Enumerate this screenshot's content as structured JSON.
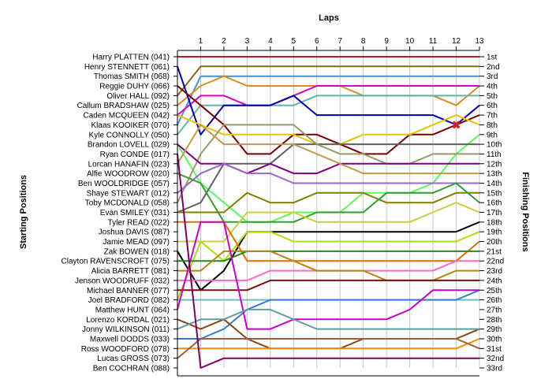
{
  "chart_data": {
    "type": "line",
    "title": "",
    "xlabel": "Laps",
    "ylabel_left": "Starting Positions",
    "ylabel_right": "Finishing Positions",
    "x": [
      0,
      1,
      2,
      3,
      4,
      5,
      6,
      7,
      8,
      9,
      10,
      11,
      12,
      13
    ],
    "x_tick_labels": [
      "1",
      "2",
      "3",
      "4",
      "5",
      "6",
      "7",
      "8",
      "9",
      "10",
      "11",
      "12",
      "13"
    ],
    "xlim": [
      0,
      13
    ],
    "ylim": [
      1,
      33
    ],
    "y_inverted": true,
    "grid": true,
    "finishing_labels": [
      "1st",
      "2nd",
      "3rd",
      "4th",
      "5th",
      "6th",
      "7th",
      "8th",
      "9th",
      "10th",
      "11th",
      "12th",
      "13th",
      "14th",
      "15th",
      "16th",
      "17th",
      "18th",
      "19th",
      "20th",
      "21st",
      "22nd",
      "23rd",
      "24th",
      "25th",
      "26th",
      "27th",
      "28th",
      "29th",
      "30th",
      "31st",
      "32nd",
      "33rd"
    ],
    "starting_labels": [
      "Harry PLATTEN (041)",
      "Henry STENNETT (061)",
      "Thomas SMITH (068)",
      "Reggie DUHY (066)",
      "Oliver HALL (092)",
      "Callum BRADSHAW (025)",
      "Caden MCQUEEN (042)",
      "Klaas KOOIKER (070)",
      "Kyle CONNOLLY (050)",
      "Brandon LOVELL (029)",
      "Ryan CONDE (017)",
      "Lorcan HANAFIN (023)",
      "Alfie WOODROW (020)",
      "Ben WOOLDRIDGE (057)",
      "Shaye STEWART (012)",
      "Toby MCDONALD (058)",
      "Evan SMILEY (031)",
      "Tyler READ (022)",
      "Joshua DAVIS (087)",
      "Jamie MEAD (097)",
      "Zak BOWEN (018)",
      "Clayton RAVENSCROFT (075)",
      "Alicia BARRETT (081)",
      "Jenson WOODRUFF (032)",
      "Michael BANNER (077)",
      "Joel BRADFORD (082)",
      "Matthew HUNT (064)",
      "Lorenzo KORDAL (021)",
      "Jonny WILKINSON (011)",
      "Maxwell DODDS (033)",
      "Ross WOODFORD (078)",
      "Lucas GROSS (073)",
      "Ben COCHRAN (088)"
    ],
    "series": [
      {
        "color": "#b22222",
        "values": [
          1,
          1,
          1,
          1,
          1,
          1,
          1,
          1,
          1,
          1,
          1,
          1,
          1,
          1
        ]
      },
      {
        "color": "#8b6914",
        "values": [
          5,
          2,
          2,
          2,
          2,
          2,
          2,
          2,
          2,
          2,
          2,
          2,
          2,
          2
        ]
      },
      {
        "color": "#4a90d9",
        "values": [
          8,
          3,
          3,
          3,
          3,
          3,
          3,
          3,
          3,
          3,
          3,
          3,
          3,
          3
        ]
      },
      {
        "color": "#e08a1e",
        "values": [
          6,
          4,
          3,
          4,
          4,
          4,
          4,
          4,
          5,
          5,
          5,
          5,
          6,
          4
        ]
      },
      {
        "color": "#d400d4",
        "values": [
          7,
          5,
          5,
          6,
          6,
          5,
          4,
          4,
          4,
          4,
          4,
          4,
          4,
          4
        ]
      },
      {
        "color": "#66b2a8",
        "values": [
          9,
          6,
          6,
          6,
          6,
          6,
          5,
          5,
          5,
          5,
          5,
          5,
          5,
          5
        ]
      },
      {
        "color": "#0000b0",
        "values": [
          2,
          9,
          6,
          6,
          6,
          5,
          7,
          7,
          7,
          7,
          7,
          7,
          8,
          6
        ]
      },
      {
        "color": "#7a0000",
        "values": [
          4,
          6,
          8,
          11,
          11,
          9,
          9,
          10,
          11,
          11,
          9,
          9,
          8,
          7
        ]
      },
      {
        "color": "#e8c300",
        "values": [
          7,
          8,
          9,
          9,
          9,
          9,
          10,
          10,
          9,
          9,
          9,
          8,
          7,
          8
        ]
      },
      {
        "color": "#55ff55",
        "values": [
          10,
          14,
          16,
          18,
          18,
          17,
          17,
          17,
          15,
          15,
          15,
          14,
          11,
          9
        ]
      },
      {
        "color": "#606060",
        "values": [
          17,
          16,
          12,
          12,
          12,
          10,
          10,
          10,
          10,
          10,
          10,
          10,
          10,
          10
        ]
      },
      {
        "color": "#999966",
        "values": [
          16,
          11,
          8,
          8,
          8,
          8,
          10,
          11,
          11,
          12,
          12,
          11,
          11,
          11
        ]
      },
      {
        "color": "#800080",
        "values": [
          10,
          12,
          12,
          13,
          12,
          13,
          13,
          12,
          12,
          12,
          12,
          12,
          12,
          12
        ]
      },
      {
        "color": "#c29a4a",
        "values": [
          12,
          8,
          10,
          10,
          10,
          10,
          11,
          12,
          13,
          13,
          13,
          13,
          13,
          13
        ]
      },
      {
        "color": "#9966cc",
        "values": [
          15,
          13,
          12,
          13,
          13,
          14,
          14,
          14,
          14,
          14,
          14,
          14,
          14,
          14
        ]
      },
      {
        "color": "#808000",
        "values": [
          17,
          17,
          17,
          15,
          16,
          16,
          15,
          15,
          15,
          16,
          16,
          16,
          15,
          15
        ]
      },
      {
        "color": "#2f9e2f",
        "values": [
          13,
          14,
          18,
          18,
          18,
          18,
          17,
          17,
          17,
          15,
          15,
          15,
          14,
          16
        ]
      },
      {
        "color": "#cccc44",
        "values": [
          20,
          20,
          20,
          17,
          17,
          17,
          18,
          18,
          18,
          18,
          18,
          17,
          16,
          17
        ]
      },
      {
        "color": "#000000",
        "values": [
          21,
          25,
          23,
          19,
          19,
          19,
          19,
          19,
          19,
          19,
          19,
          19,
          19,
          18
        ]
      },
      {
        "color": "#b0e000",
        "values": [
          26,
          20,
          22,
          19,
          19,
          20,
          20,
          20,
          20,
          20,
          20,
          20,
          20,
          19
        ]
      },
      {
        "color": "#e07000",
        "values": [
          18,
          18,
          18,
          22,
          22,
          22,
          22,
          22,
          22,
          22,
          22,
          22,
          22,
          20
        ]
      },
      {
        "color": "#228b22",
        "values": [
          22,
          22,
          22,
          21,
          21,
          21,
          21,
          21,
          21,
          21,
          21,
          21,
          21,
          21
        ]
      },
      {
        "color": "#ff66cc",
        "values": [
          24,
          24,
          24,
          24,
          23,
          23,
          23,
          23,
          23,
          23,
          23,
          23,
          22,
          22
        ]
      },
      {
        "color": "#b8860b",
        "values": [
          23,
          23,
          21,
          21,
          21,
          22,
          23,
          23,
          23,
          24,
          24,
          24,
          23,
          23
        ]
      },
      {
        "color": "#7a1010",
        "values": [
          25,
          25,
          25,
          25,
          24,
          24,
          24,
          24,
          24,
          24,
          24,
          24,
          24,
          24
        ]
      },
      {
        "color": "#66c0c0",
        "values": [
          26,
          26,
          26,
          26,
          26,
          26,
          26,
          26,
          26,
          26,
          26,
          26,
          26,
          26
        ]
      },
      {
        "color": "#3b7bd6",
        "values": [
          30,
          30,
          29,
          27,
          26,
          26,
          26,
          26,
          26,
          26,
          26,
          26,
          26,
          25
        ]
      },
      {
        "color": "#cc00cc",
        "values": [
          27,
          18,
          18,
          29,
          29,
          28,
          28,
          28,
          28,
          28,
          27,
          25,
          25,
          25
        ]
      },
      {
        "color": "#8b4513",
        "values": [
          28,
          29,
          28,
          30,
          31,
          31,
          31,
          31,
          30,
          30,
          30,
          30,
          30,
          29
        ]
      },
      {
        "color": "#5f9ea0",
        "values": [
          29,
          28,
          28,
          27,
          27,
          28,
          29,
          29,
          29,
          29,
          29,
          29,
          29,
          29
        ]
      },
      {
        "color": "#ff8c00",
        "values": [
          31,
          31,
          31,
          31,
          31,
          31,
          31,
          31,
          31,
          31,
          31,
          31,
          31,
          30
        ]
      },
      {
        "color": "#a06040",
        "values": [
          32,
          30,
          30,
          30,
          30,
          30,
          30,
          30,
          30,
          30,
          30,
          30,
          30,
          31
        ]
      },
      {
        "color": "#800060",
        "values": [
          11,
          33,
          32,
          32,
          32,
          32,
          32,
          32,
          32,
          32,
          32,
          32,
          32,
          32
        ]
      }
    ],
    "retirement_marker": {
      "lap": 12,
      "position": 8,
      "symbol": "✖",
      "color": "#cc2222"
    }
  }
}
